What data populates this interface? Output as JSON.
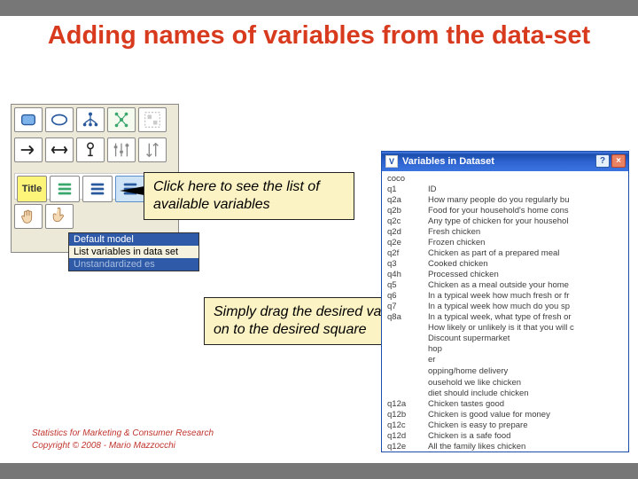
{
  "slide": {
    "title": "Adding names of variables from the data-set"
  },
  "palette": {
    "title_tool": "Title",
    "tooltip": {
      "line1": "Default model",
      "line2": "List variables in data set",
      "line3": "Unstandardized es"
    }
  },
  "callouts": {
    "c1": "Click here to see the list of available variables",
    "c2": "Simply drag the desired variables on to the desired square"
  },
  "window": {
    "title": "Variables in Dataset",
    "rows": [
      [
        "coco",
        ""
      ],
      [
        "q1",
        "ID"
      ],
      [
        "q2a",
        "How many people do you regularly bu"
      ],
      [
        "q2b",
        "Food for your household's home cons"
      ],
      [
        "q2c",
        "Any type of chicken for your househol"
      ],
      [
        "q2d",
        "Fresh chicken"
      ],
      [
        "q2e",
        "Frozen chicken"
      ],
      [
        "q2f",
        "Chicken as part of a prepared meal"
      ],
      [
        "q3",
        "Cooked chicken"
      ],
      [
        "q4h",
        "Processed chicken"
      ],
      [
        "q5",
        "Chicken as a meal outside your home"
      ],
      [
        "q6",
        "In a typical week how much fresh or fr"
      ],
      [
        "q7",
        "In a typical week how much do you sp"
      ],
      [
        "q8a",
        "In a typical week, what type of fresh or"
      ],
      [
        "",
        "How likely or unlikely is it that you will c"
      ],
      [
        "",
        "Discount supermarket"
      ],
      [
        "",
        "hop"
      ],
      [
        "",
        "er"
      ],
      [
        "",
        ""
      ],
      [
        "",
        "opping/home delivery"
      ],
      [
        "",
        ""
      ],
      [
        "",
        "ousehold we like chicken"
      ],
      [
        "",
        "diet should include chicken"
      ],
      [
        "q12a",
        "Chicken tastes good"
      ],
      [
        "q12b",
        "Chicken is good value for money"
      ],
      [
        "q12c",
        "Chicken is easy to prepare"
      ],
      [
        "q12d",
        "Chicken is a safe food"
      ],
      [
        "q12e",
        "All the family likes chicken"
      ]
    ]
  },
  "footer": {
    "line1": "Statistics for Marketing & Consumer Research",
    "line2": "Copyright © 2008 - Mario Mazzocchi"
  }
}
